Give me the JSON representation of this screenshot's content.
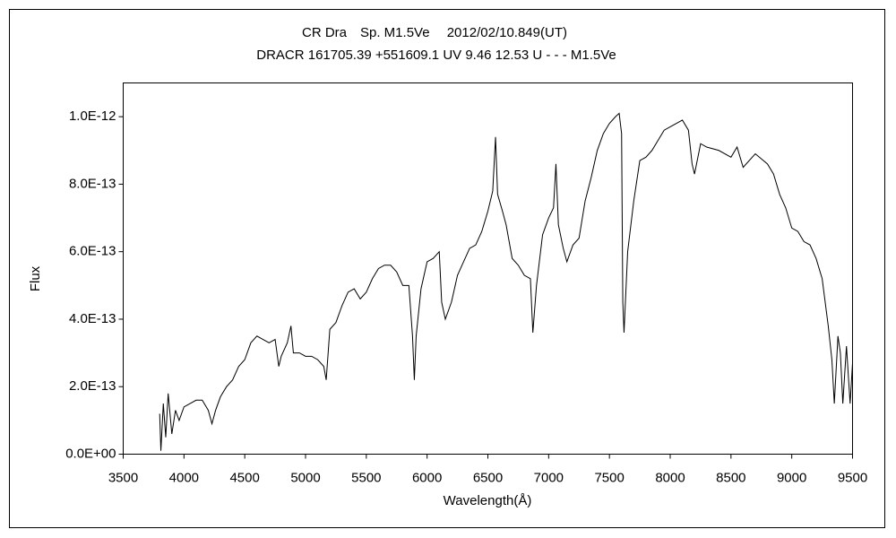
{
  "chart_data": {
    "type": "line",
    "title": "CR Dra　Sp. M1.5Ve　 2012/02/10.849(UT)",
    "subtitle": "DRACR 161705.39 +551609.1 UV 9.46 12.53 U - - - M1.5Ve",
    "x_label": "Wavelength(Å)",
    "y_label": "Flux",
    "xlim": [
      3500,
      9500
    ],
    "xticks": [
      3500,
      4000,
      4500,
      5000,
      5500,
      6000,
      6500,
      7000,
      7500,
      8000,
      8500,
      9000,
      9500
    ],
    "ylim": [
      0,
      1.1e-12
    ],
    "yticks": [
      {
        "value": 0,
        "label": "0.0E+00"
      },
      {
        "value": 2e-13,
        "label": "2.0E-13"
      },
      {
        "value": 4e-13,
        "label": "4.0E-13"
      },
      {
        "value": 6e-13,
        "label": "6.0E-13"
      },
      {
        "value": 8e-13,
        "label": "8.0E-13"
      },
      {
        "value": 1e-12,
        "label": "1.0E-12"
      }
    ],
    "grid": false,
    "series": [
      {
        "name": "Flux",
        "color": "#000000",
        "x": [
          3800,
          3810,
          3830,
          3850,
          3870,
          3900,
          3930,
          3960,
          4000,
          4050,
          4100,
          4150,
          4200,
          4230,
          4260,
          4300,
          4350,
          4400,
          4450,
          4500,
          4550,
          4600,
          4650,
          4700,
          4750,
          4780,
          4800,
          4850,
          4880,
          4900,
          4950,
          5000,
          5050,
          5100,
          5150,
          5170,
          5200,
          5250,
          5300,
          5350,
          5400,
          5450,
          5500,
          5550,
          5600,
          5650,
          5700,
          5750,
          5800,
          5850,
          5880,
          5895,
          5910,
          5950,
          6000,
          6050,
          6100,
          6120,
          6150,
          6200,
          6250,
          6300,
          6350,
          6400,
          6450,
          6500,
          6540,
          6563,
          6580,
          6620,
          6650,
          6700,
          6750,
          6800,
          6850,
          6870,
          6900,
          6950,
          7000,
          7040,
          7060,
          7080,
          7120,
          7150,
          7200,
          7250,
          7300,
          7350,
          7400,
          7450,
          7500,
          7550,
          7580,
          7600,
          7610,
          7620,
          7650,
          7700,
          7750,
          7800,
          7850,
          7900,
          7950,
          8000,
          8050,
          8100,
          8150,
          8180,
          8200,
          8250,
          8300,
          8400,
          8500,
          8550,
          8600,
          8700,
          8800,
          8850,
          8900,
          8950,
          9000,
          9050,
          9100,
          9150,
          9200,
          9250,
          9300,
          9330,
          9350,
          9380,
          9400,
          9420,
          9450,
          9480,
          9500
        ],
        "values": [
          1.2e-13,
          1e-14,
          1.5e-13,
          5e-14,
          1.8e-13,
          6e-14,
          1.3e-13,
          1e-13,
          1.4e-13,
          1.5e-13,
          1.6e-13,
          1.6e-13,
          1.3e-13,
          9e-14,
          1.3e-13,
          1.7e-13,
          2e-13,
          2.2e-13,
          2.6e-13,
          2.8e-13,
          3.3e-13,
          3.5e-13,
          3.4e-13,
          3.3e-13,
          3.4e-13,
          2.6e-13,
          2.9e-13,
          3.3e-13,
          3.8e-13,
          3e-13,
          3e-13,
          2.9e-13,
          2.9e-13,
          2.8e-13,
          2.6e-13,
          2.2e-13,
          3.7e-13,
          3.9e-13,
          4.4e-13,
          4.8e-13,
          4.9e-13,
          4.6e-13,
          4.8e-13,
          5.2e-13,
          5.5e-13,
          5.6e-13,
          5.6e-13,
          5.4e-13,
          5e-13,
          5e-13,
          3.5e-13,
          2.2e-13,
          3.5e-13,
          4.9e-13,
          5.7e-13,
          5.8e-13,
          6e-13,
          4.5e-13,
          4e-13,
          4.5e-13,
          5.3e-13,
          5.7e-13,
          6.1e-13,
          6.2e-13,
          6.6e-13,
          7.2e-13,
          7.8e-13,
          9.4e-13,
          7.7e-13,
          7.2e-13,
          6.8e-13,
          5.8e-13,
          5.6e-13,
          5.3e-13,
          5.2e-13,
          3.6e-13,
          5e-13,
          6.5e-13,
          7e-13,
          7.3e-13,
          8.6e-13,
          6.8e-13,
          6.1e-13,
          5.7e-13,
          6.2e-13,
          6.4e-13,
          7.5e-13,
          8.2e-13,
          9e-13,
          9.5e-13,
          9.8e-13,
          1e-12,
          1.01e-12,
          9.5e-13,
          4.5e-13,
          3.6e-13,
          6e-13,
          7.5e-13,
          8.7e-13,
          8.8e-13,
          9e-13,
          9.3e-13,
          9.6e-13,
          9.7e-13,
          9.8e-13,
          9.9e-13,
          9.6e-13,
          8.6e-13,
          8.3e-13,
          9.2e-13,
          9.1e-13,
          9e-13,
          8.8e-13,
          9.1e-13,
          8.5e-13,
          8.9e-13,
          8.6e-13,
          8.3e-13,
          7.7e-13,
          7.3e-13,
          6.7e-13,
          6.6e-13,
          6.3e-13,
          6.2e-13,
          5.8e-13,
          5.2e-13,
          3.8e-13,
          2.8e-13,
          1.5e-13,
          3.5e-13,
          3e-13,
          1.5e-13,
          3.2e-13,
          1.5e-13,
          2.7e-13
        ]
      }
    ]
  }
}
